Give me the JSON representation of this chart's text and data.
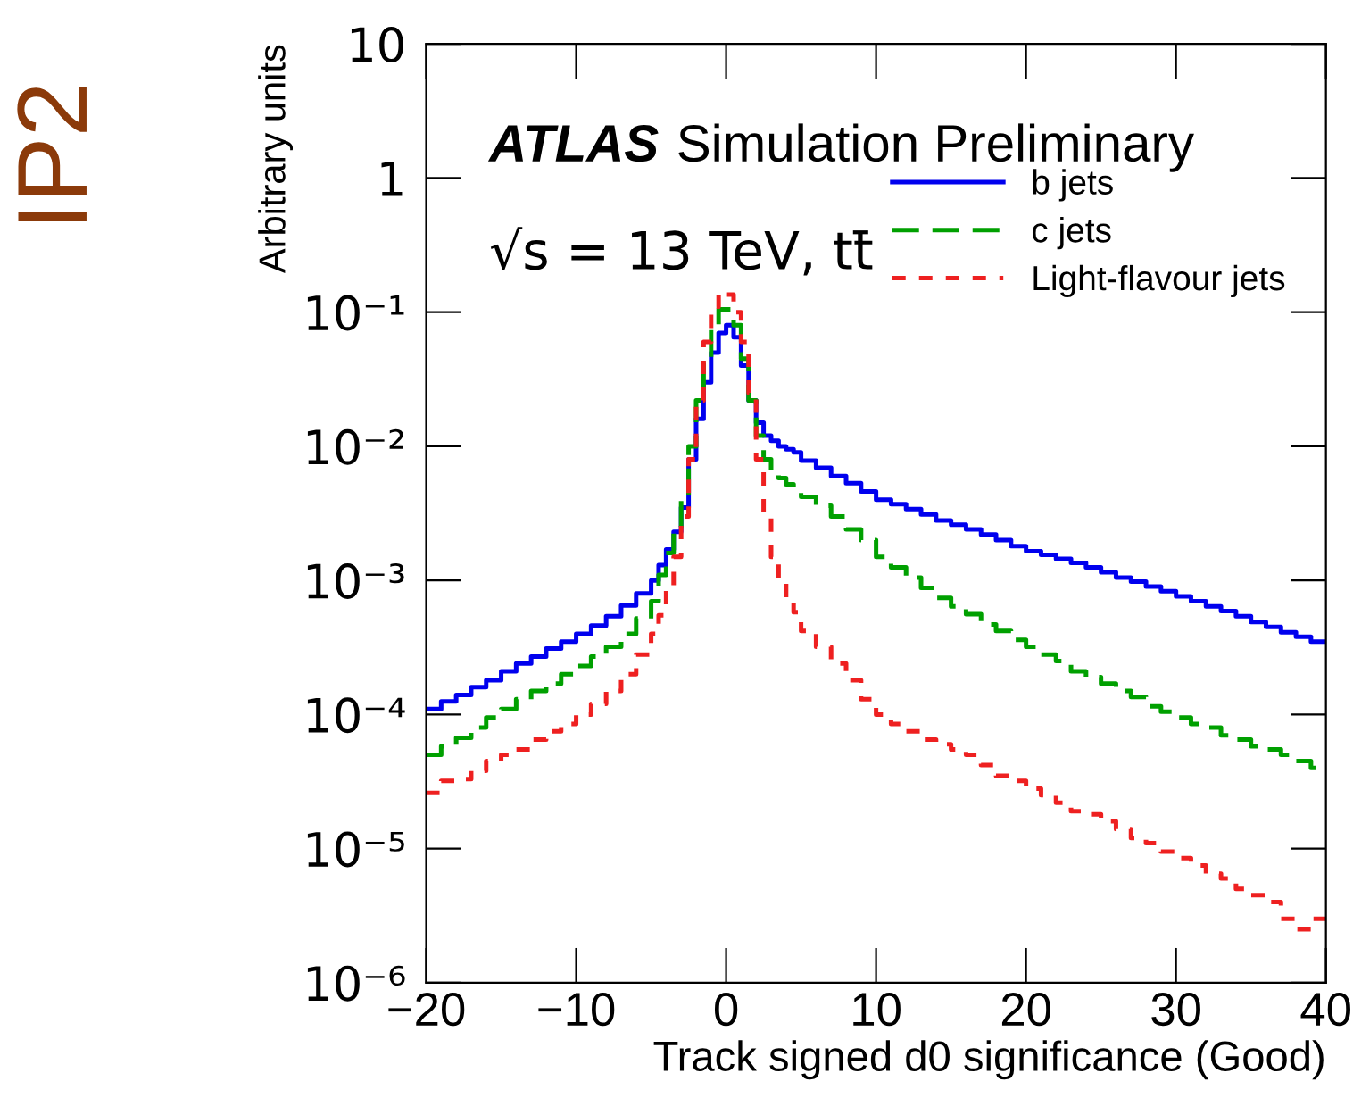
{
  "chart_data": {
    "type": "histogram",
    "xlabel": "Track signed d0 significance (Good)",
    "ylabel": "Arbitrary units",
    "bins": [
      -20,
      -19,
      -18,
      -17,
      -16,
      -15,
      -14,
      -13,
      -12,
      -11,
      -10,
      -9,
      -8,
      -7,
      -6,
      -5,
      -4.5,
      -4,
      -3.5,
      -3,
      -2.5,
      -2,
      -1.5,
      -1,
      -0.5,
      0,
      0.5,
      1,
      1.5,
      2,
      2.5,
      3,
      3.5,
      4,
      4.5,
      5,
      6,
      7,
      8,
      9,
      10,
      11,
      12,
      13,
      14,
      15,
      16,
      17,
      18,
      19,
      20,
      21,
      22,
      23,
      24,
      25,
      26,
      27,
      28,
      29,
      30,
      31,
      32,
      33,
      34,
      35,
      36,
      37,
      38,
      39,
      40
    ],
    "series": [
      {
        "name": "b jets",
        "color": "#0000ee",
        "line_style": "solid",
        "values": [
          0.00011,
          0.000125,
          0.00014,
          0.00016,
          0.00018,
          0.00021,
          0.00024,
          0.00027,
          0.00031,
          0.00035,
          0.0004,
          0.00046,
          0.00054,
          0.00065,
          0.0008,
          0.001,
          0.0013,
          0.0017,
          0.0023,
          0.0035,
          0.008,
          0.016,
          0.03,
          0.05,
          0.07,
          0.08,
          0.065,
          0.04,
          0.022,
          0.015,
          0.012,
          0.011,
          0.01,
          0.0095,
          0.009,
          0.0078,
          0.0069,
          0.006,
          0.0053,
          0.0046,
          0.004,
          0.0037,
          0.0034,
          0.0031,
          0.0028,
          0.0026,
          0.0024,
          0.0022,
          0.002,
          0.0018,
          0.00165,
          0.00155,
          0.00145,
          0.00135,
          0.00125,
          0.00115,
          0.00105,
          0.00098,
          0.0009,
          0.00083,
          0.00076,
          0.0007,
          0.00064,
          0.00059,
          0.00054,
          0.00049,
          0.00045,
          0.00041,
          0.00038,
          0.00035
        ]
      },
      {
        "name": "c jets",
        "color": "#00a000",
        "line_style": "dashed",
        "values": [
          5e-05,
          5.8e-05,
          6.7e-05,
          8e-05,
          9.5e-05,
          0.00011,
          0.00013,
          0.00015,
          0.00017,
          0.0002,
          0.00023,
          0.00027,
          0.00032,
          0.0004,
          0.00052,
          0.0007,
          0.0011,
          0.0016,
          0.0025,
          0.004,
          0.01,
          0.022,
          0.045,
          0.08,
          0.105,
          0.105,
          0.08,
          0.045,
          0.022,
          0.012,
          0.008,
          0.0065,
          0.0058,
          0.0052,
          0.0048,
          0.0042,
          0.0036,
          0.003,
          0.0024,
          0.002,
          0.0015,
          0.00125,
          0.00105,
          0.00088,
          0.00074,
          0.00064,
          0.00056,
          0.00047,
          0.00042,
          0.00036,
          0.00032,
          0.00028,
          0.00025,
          0.00021,
          0.00019,
          0.00017,
          0.00015,
          0.000135,
          0.000115,
          0.000105,
          9.5e-05,
          8.5e-05,
          8e-05,
          7e-05,
          6.5e-05,
          5.8e-05,
          5.5e-05,
          5e-05,
          4.5e-05,
          4e-05
        ]
      },
      {
        "name": "Light-flavour jets",
        "color": "#ee2020",
        "line_style": "dotted",
        "values": [
          2.6e-05,
          3.2e-05,
          3.3e-05,
          3.8e-05,
          4.5e-05,
          5e-05,
          5.5e-05,
          6.5e-05,
          7.5e-05,
          8.5e-05,
          0.0001,
          0.00012,
          0.00015,
          0.0002,
          0.00028,
          0.0004,
          0.00055,
          0.0009,
          0.0015,
          0.003,
          0.008,
          0.022,
          0.06,
          0.11,
          0.14,
          0.135,
          0.1,
          0.06,
          0.025,
          0.008,
          0.003,
          0.0015,
          0.001,
          0.00075,
          0.00058,
          0.00042,
          0.00032,
          0.00024,
          0.00018,
          0.00013,
          0.0001,
          8.5e-05,
          7.5e-05,
          6.5e-05,
          6e-05,
          5.5e-05,
          5e-05,
          4.2e-05,
          3.5e-05,
          3.2e-05,
          2.8e-05,
          2.5e-05,
          2.2e-05,
          1.9e-05,
          1.8e-05,
          1.6e-05,
          1.4e-05,
          1.2e-05,
          1.1e-05,
          9.5e-06,
          8.5e-06,
          7.5e-06,
          6.5e-06,
          6e-06,
          5e-06,
          4.5e-06,
          4e-06,
          3e-06,
          2.5e-06,
          3e-06
        ]
      }
    ],
    "log": true,
    "xlim": [
      -20,
      40
    ],
    "xticks": [
      {
        "value": -20,
        "label": "−20"
      },
      {
        "value": -10,
        "label": "−10"
      },
      0,
      10,
      20,
      30,
      40
    ],
    "ylim": [
      1e-06,
      10
    ],
    "yticks": [
      {
        "value": 1e-06,
        "label": "10⁻⁶"
      },
      {
        "value": 1e-05,
        "label": "10⁻⁵"
      },
      {
        "value": 0.0001,
        "label": "10⁻⁴"
      },
      {
        "value": 0.001,
        "label": "10⁻³"
      },
      {
        "value": 0.01,
        "label": "10⁻²"
      },
      {
        "value": 0.1,
        "label": "10⁻¹"
      },
      1,
      10
    ],
    "grid": false,
    "legend": "top right",
    "annotations": [
      "ATLAS",
      "Simulation Preliminary",
      "√s = 13 TeV, tt̄",
      "IP2"
    ]
  }
}
